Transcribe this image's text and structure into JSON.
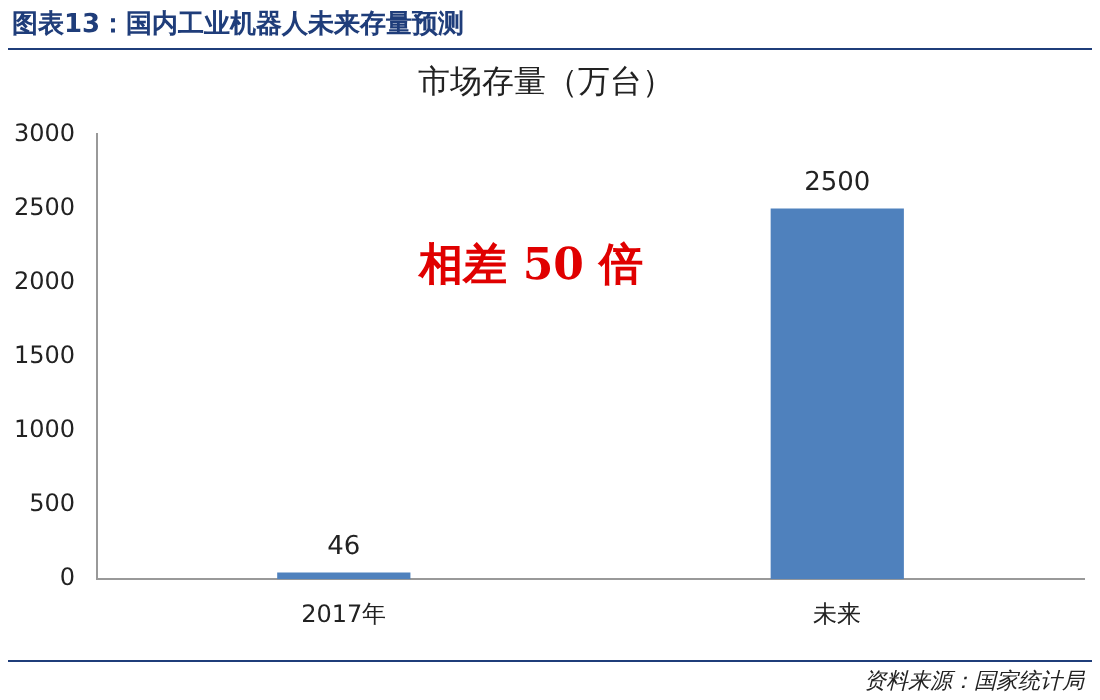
{
  "chart_data": {
    "type": "bar",
    "title": "市场存量（万台）",
    "categories": [
      "2017年",
      "未来"
    ],
    "values": [
      46,
      2500
    ],
    "color": "#4f81bd",
    "ylim": [
      0,
      3000
    ],
    "yticks": [
      0,
      500,
      1000,
      1500,
      2000,
      2500,
      3000
    ],
    "data_labels": true,
    "grid": false,
    "legend": false,
    "annotations": [
      "图表13：国内工业机器人未来存量预测",
      "相差 50 倍",
      "资料来源：国家统计局"
    ]
  }
}
